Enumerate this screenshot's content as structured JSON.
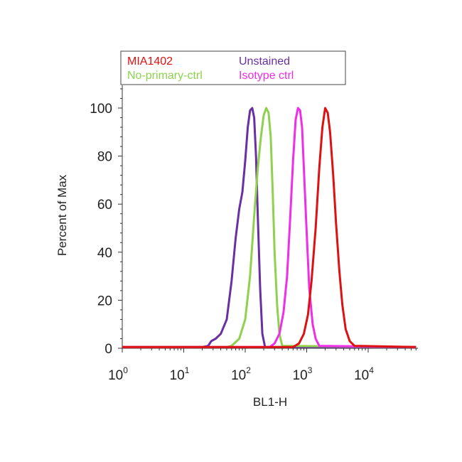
{
  "chart_data": {
    "type": "line",
    "xlabel": "BL1-H",
    "ylabel": "Percent of Max",
    "x_scale": "log",
    "xlim": [
      1,
      60000
    ],
    "ylim": [
      0,
      110
    ],
    "x_ticks": [
      {
        "value": 1,
        "base": "10",
        "exp": "0"
      },
      {
        "value": 10,
        "base": "10",
        "exp": "1"
      },
      {
        "value": 100,
        "base": "10",
        "exp": "2"
      },
      {
        "value": 1000,
        "base": "10",
        "exp": "3"
      },
      {
        "value": 10000,
        "base": "10",
        "exp": "4"
      }
    ],
    "y_ticks": [
      "0",
      "20",
      "40",
      "60",
      "80",
      "100"
    ],
    "y_tick_values": [
      0,
      20,
      40,
      60,
      80,
      100
    ],
    "legend_placement": "top",
    "grid": false,
    "series": [
      {
        "name": "Unstained",
        "color": "#6a2fa0",
        "x": [
          1,
          20,
          25,
          28,
          33,
          40,
          50,
          60,
          70,
          80,
          90,
          100,
          110,
          120,
          130,
          140,
          150,
          160,
          175,
          190,
          210,
          60000
        ],
        "y": [
          0.5,
          0.5,
          1,
          3,
          4,
          6,
          12,
          28,
          46,
          58,
          65,
          78,
          92,
          99,
          100,
          96,
          80,
          55,
          25,
          6,
          0.5,
          0.5
        ]
      },
      {
        "name": "No-primary-ctrl",
        "color": "#8fd14f",
        "x": [
          1,
          50,
          60,
          80,
          100,
          120,
          140,
          160,
          180,
          200,
          220,
          240,
          260,
          280,
          300,
          330,
          360,
          400,
          60000
        ],
        "y": [
          0.5,
          0.5,
          1,
          4,
          12,
          30,
          55,
          75,
          88,
          97,
          100,
          98,
          88,
          65,
          40,
          18,
          6,
          1,
          0.5
        ]
      },
      {
        "name": "Isotype ctrl",
        "color": "#ee2ee8",
        "x": [
          1,
          250,
          300,
          360,
          420,
          480,
          540,
          600,
          660,
          720,
          780,
          840,
          900,
          1000,
          1100,
          1250,
          1400,
          1600,
          60000
        ],
        "y": [
          0.5,
          0.5,
          2,
          6,
          15,
          30,
          55,
          78,
          95,
          100,
          99,
          92,
          75,
          48,
          25,
          10,
          4,
          1,
          0.5
        ]
      },
      {
        "name": "MIA1402",
        "color": "#dd1111",
        "x": [
          1,
          600,
          750,
          900,
          1050,
          1200,
          1400,
          1600,
          1800,
          2000,
          2200,
          2400,
          2700,
          3000,
          3400,
          3800,
          4300,
          5000,
          6000,
          60000
        ],
        "y": [
          0.5,
          0.5,
          2,
          6,
          14,
          28,
          50,
          75,
          92,
          100,
          98,
          90,
          72,
          52,
          32,
          18,
          8,
          3,
          1,
          0.5
        ]
      }
    ],
    "legend": [
      {
        "label": "MIA1402",
        "color": "#dd1111"
      },
      {
        "label": "Unstained",
        "color": "#6a2fa0"
      },
      {
        "label": "No-primary-ctrl",
        "color": "#8fd14f"
      },
      {
        "label": "Isotype ctrl",
        "color": "#ee2ee8"
      }
    ]
  }
}
